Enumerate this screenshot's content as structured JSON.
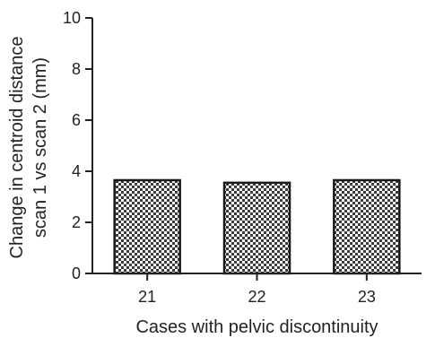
{
  "chart_data": {
    "type": "bar",
    "title": "",
    "categories": [
      "21",
      "22",
      "23"
    ],
    "values": [
      3.65,
      3.55,
      3.65
    ],
    "xlabel": "Cases with pelvic discontinuity",
    "ylabel_lines": [
      "Change in centroid distance",
      "scan 1 vs scan 2 (mm)"
    ],
    "ylim": [
      0,
      10
    ],
    "yticks": [
      0,
      2,
      4,
      6,
      8,
      10
    ],
    "grid": false,
    "legend": "none",
    "bar_fill": "checkerboard",
    "colors": {
      "bar_dark": "#3a3a3a",
      "bar_light": "#ffffff",
      "bar_edge": "#1a1a1a",
      "axis": "#222222"
    }
  }
}
